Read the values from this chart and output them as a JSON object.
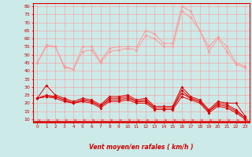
{
  "x": [
    0,
    1,
    2,
    3,
    4,
    5,
    6,
    7,
    8,
    9,
    10,
    11,
    12,
    13,
    14,
    15,
    16,
    17,
    18,
    19,
    20,
    21,
    22,
    23
  ],
  "series_light": [
    [
      45,
      56,
      55,
      43,
      41,
      55,
      55,
      46,
      54,
      55,
      55,
      55,
      65,
      63,
      57,
      57,
      80,
      77,
      65,
      55,
      61,
      55,
      45,
      43
    ],
    [
      45,
      55,
      55,
      42,
      41,
      52,
      53,
      45,
      52,
      53,
      54,
      53,
      62,
      60,
      55,
      55,
      77,
      73,
      65,
      52,
      60,
      52,
      44,
      42
    ]
  ],
  "series_dark": [
    [
      23,
      31,
      25,
      23,
      21,
      23,
      22,
      19,
      24,
      24,
      25,
      22,
      23,
      18,
      18,
      18,
      30,
      24,
      22,
      16,
      21,
      20,
      20,
      12
    ],
    [
      23,
      25,
      24,
      22,
      20,
      22,
      21,
      18,
      23,
      23,
      24,
      21,
      22,
      17,
      17,
      17,
      28,
      23,
      21,
      15,
      20,
      19,
      16,
      11
    ],
    [
      23,
      24,
      24,
      22,
      20,
      22,
      21,
      18,
      22,
      22,
      23,
      21,
      21,
      17,
      17,
      17,
      26,
      23,
      21,
      15,
      19,
      18,
      15,
      11
    ],
    [
      23,
      24,
      23,
      21,
      20,
      21,
      20,
      17,
      21,
      21,
      22,
      20,
      20,
      16,
      16,
      16,
      24,
      22,
      20,
      14,
      18,
      17,
      14,
      10
    ]
  ],
  "xlim": [
    -0.5,
    23.5
  ],
  "ylim": [
    8,
    82
  ],
  "yticks": [
    10,
    15,
    20,
    25,
    30,
    35,
    40,
    45,
    50,
    55,
    60,
    65,
    70,
    75,
    80
  ],
  "xlabel": "Vent moyen/en rafales ( km/h )",
  "light_color": "#ff9999",
  "dark_color": "#dd0000",
  "bg_color": "#cceae8",
  "grid_color": "#ff9999",
  "xlabel_color": "#cc0000",
  "tick_color": "#cc0000",
  "arrow_color": "#ff5555",
  "bottom_line_color": "#dd0000"
}
